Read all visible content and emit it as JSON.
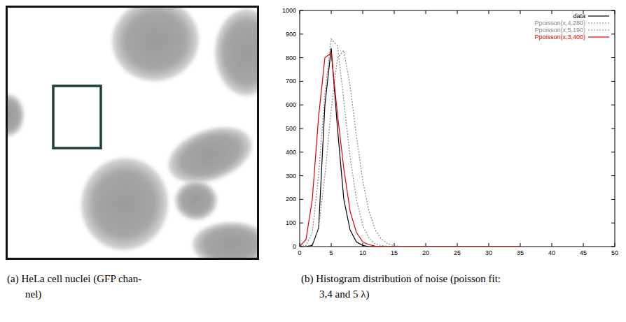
{
  "chart_data": {
    "type": "line",
    "x": [
      0,
      1,
      2,
      3,
      4,
      5,
      6,
      7,
      8,
      9,
      10,
      11,
      12,
      13,
      14,
      15,
      16,
      17,
      18,
      19,
      20,
      21,
      22,
      23,
      24,
      25,
      26,
      27,
      28,
      29,
      30,
      31,
      32,
      33,
      34,
      35
    ],
    "xlim": [
      0,
      50
    ],
    "xticks": [
      0,
      5,
      10,
      15,
      20,
      25,
      30,
      35,
      40,
      45,
      50
    ],
    "ylim": [
      0,
      1000
    ],
    "yticks": [
      0,
      100,
      200,
      300,
      400,
      500,
      600,
      700,
      800,
      900,
      1000
    ],
    "legend": "top-right",
    "series": [
      {
        "name": "data",
        "color": "#000000",
        "line_style": "solid",
        "values": [
          0,
          0,
          5,
          77,
          600,
          840,
          500,
          200,
          70,
          20,
          5,
          0,
          0,
          0,
          0,
          0,
          0,
          0,
          0,
          0,
          0,
          0,
          0,
          0,
          0,
          0,
          0,
          0,
          0,
          0,
          0,
          0,
          0,
          0,
          0,
          0
        ]
      },
      {
        "name": "Ppoisson(x,4,280)",
        "color": "#888888",
        "line_style": "dotted",
        "values": [
          0,
          5,
          60,
          300,
          650,
          880,
          850,
          620,
          380,
          200,
          90,
          35,
          12,
          4,
          1,
          0,
          0,
          0,
          0,
          0,
          0,
          0,
          0,
          0,
          0,
          0,
          0,
          0,
          0,
          0,
          0,
          0,
          0,
          0,
          0,
          0
        ]
      },
      {
        "name": "Ppoisson(x,5,190)",
        "color": "#888888",
        "line_style": "dotted",
        "values": [
          0,
          0,
          10,
          80,
          300,
          580,
          800,
          830,
          680,
          470,
          280,
          150,
          70,
          30,
          12,
          4,
          1,
          0,
          0,
          0,
          0,
          0,
          0,
          0,
          0,
          0,
          0,
          0,
          0,
          0,
          0,
          0,
          0,
          0,
          0,
          0
        ]
      },
      {
        "name": "Ppoisson(x,3,400)",
        "color": "#e00000",
        "line_style": "solid",
        "values": [
          0,
          30,
          200,
          550,
          800,
          820,
          560,
          330,
          150,
          60,
          20,
          8,
          2,
          0,
          0,
          0,
          0,
          0,
          0,
          0,
          0,
          0,
          0,
          0,
          0,
          0,
          0,
          0,
          0,
          0,
          0,
          0,
          0,
          0,
          0,
          0
        ]
      }
    ]
  },
  "figure": {
    "captions": [
      [
        "(a) HeLa cell nuclei (GFP chan-",
        "nel)"
      ],
      [
        "(b) Histogram distribution of noise (poisson fit:",
        "3,4 and 5 λ)"
      ]
    ]
  }
}
